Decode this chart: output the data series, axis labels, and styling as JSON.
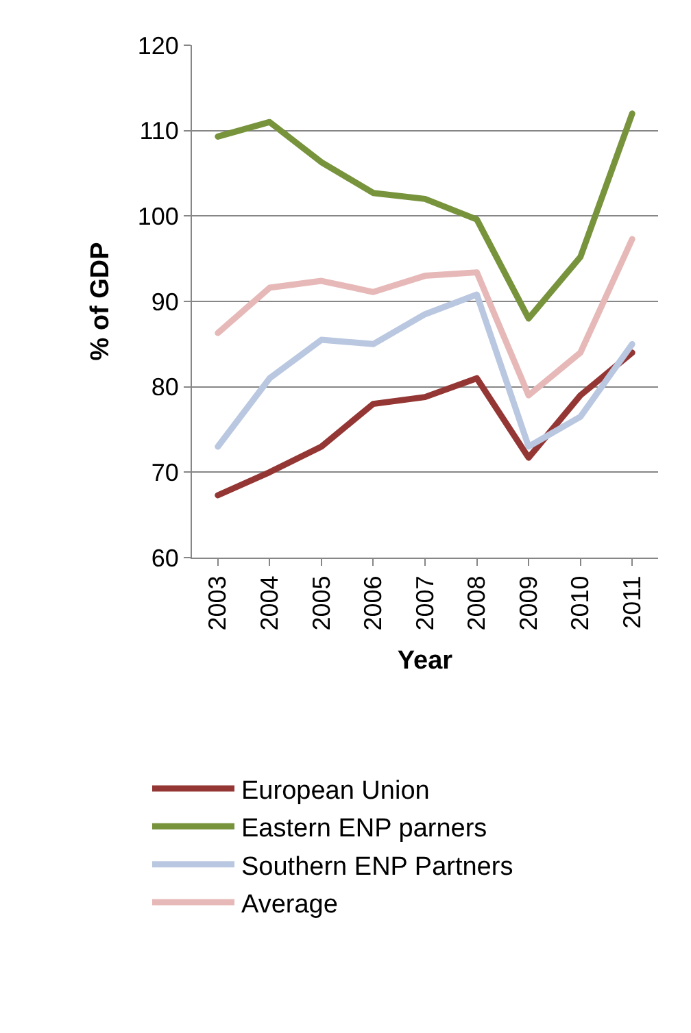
{
  "chart_data": {
    "type": "line",
    "xlabel": "Year",
    "ylabel": "% of GDP",
    "categories": [
      "2003",
      "2004",
      "2005",
      "2006",
      "2007",
      "2008",
      "2009",
      "2010",
      "2011"
    ],
    "series": [
      {
        "name": "European Union",
        "color": "#943634",
        "values": [
          67.3,
          70,
          73,
          78,
          78.8,
          81,
          71.7,
          79,
          84
        ]
      },
      {
        "name": "Eastern ENP parners",
        "color": "#77933c",
        "values": [
          109.3,
          111,
          106.3,
          102.7,
          102,
          99.6,
          88,
          95.2,
          112
        ]
      },
      {
        "name": "Southern ENP Partners",
        "color": "#b9c7e0",
        "values": [
          73,
          81,
          85.5,
          85,
          88.5,
          90.8,
          73,
          76.5,
          85
        ]
      },
      {
        "name": "Average",
        "color": "#e6b9b8",
        "values": [
          86.3,
          91.6,
          92.4,
          91.1,
          93,
          93.4,
          79,
          84,
          97.3
        ]
      }
    ],
    "ylim": [
      60,
      120
    ],
    "yticks": [
      60,
      70,
      80,
      90,
      100,
      110,
      120
    ],
    "grid": "y",
    "legend": "bottom",
    "marker": "none",
    "line_style": "solid"
  }
}
